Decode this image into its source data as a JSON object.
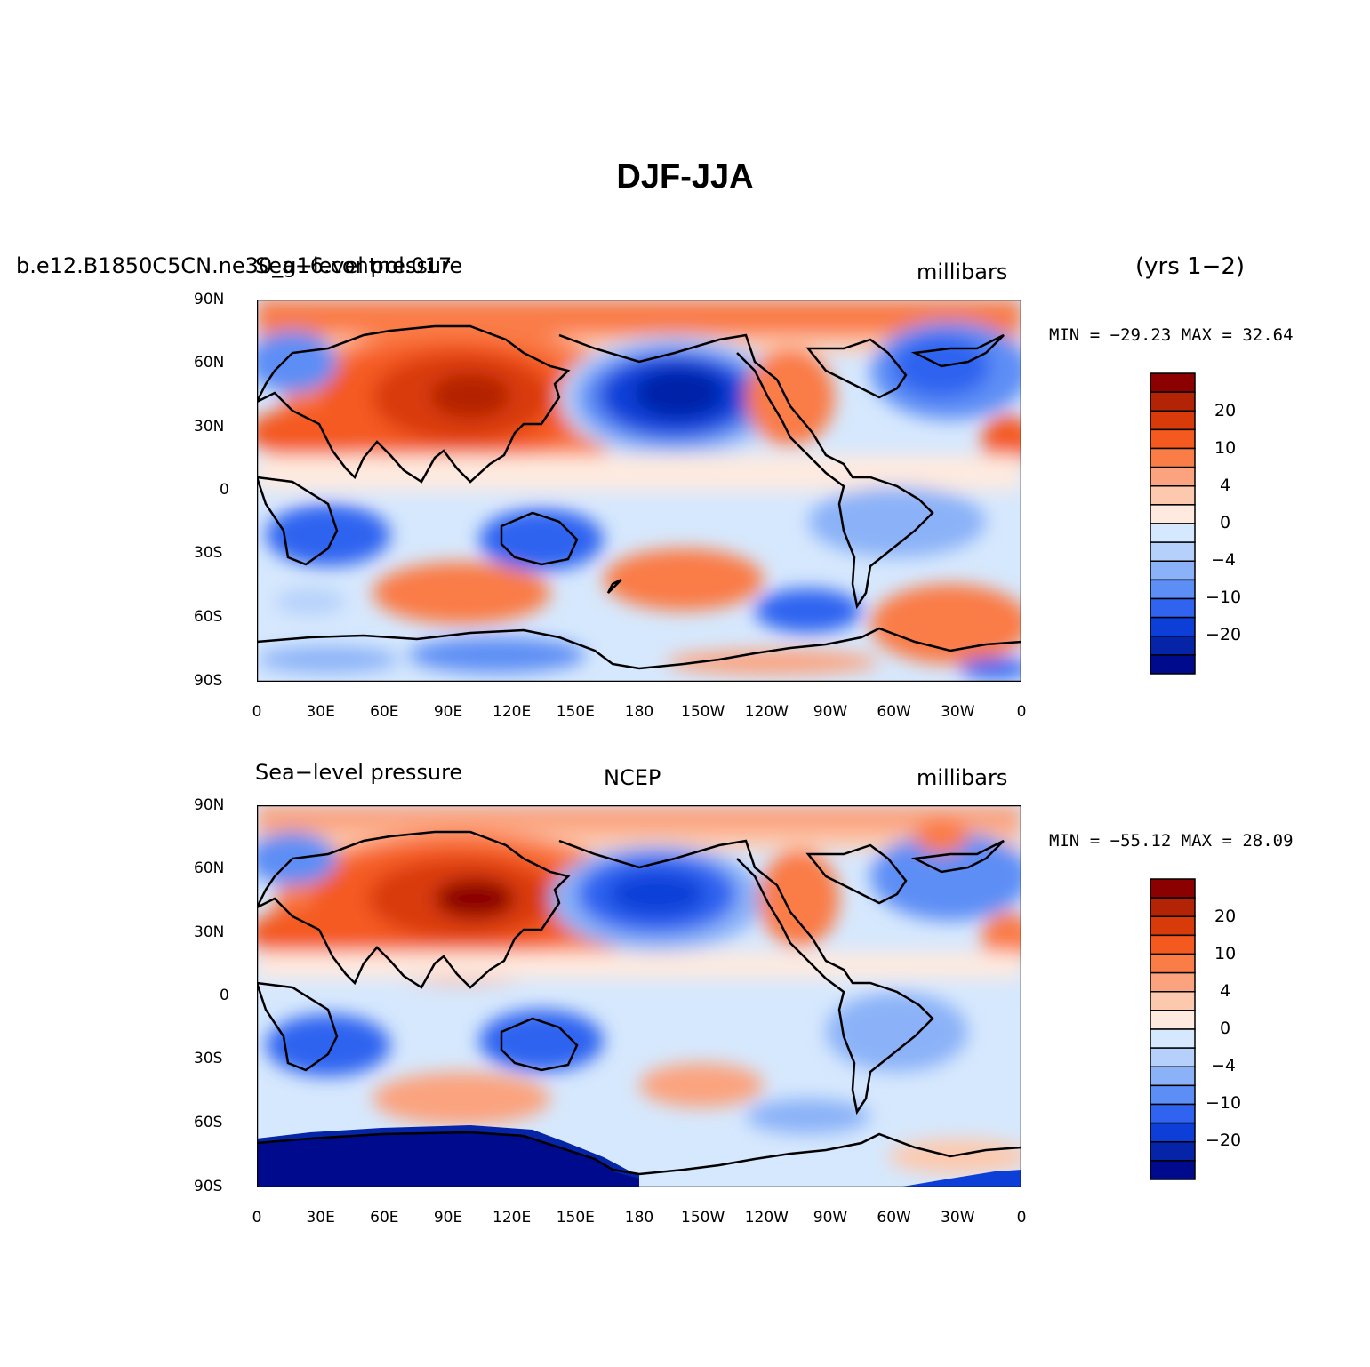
{
  "title": "DJF-JJA",
  "panels": [
    {
      "left_label": "b.e12.B1850C5CN.ne30_g16.control.017",
      "left_label_overlay": "Sea−level pressure",
      "center_label": "",
      "right_label": "millibars",
      "extra_label": "(yrs 1−2)",
      "min_max": "MIN = −29.23 MAX =  32.64"
    },
    {
      "left_label": "Sea−level pressure",
      "center_label": "NCEP",
      "right_label": "millibars",
      "extra_label": "",
      "min_max": "MIN = −55.12 MAX =  28.09"
    }
  ],
  "lat_labels": [
    "90N",
    "60N",
    "30N",
    "0",
    "30S",
    "60S",
    "90S"
  ],
  "lon_labels": [
    "0",
    "30E",
    "60E",
    "90E",
    "120E",
    "150E",
    "180",
    "150W",
    "120W",
    "90W",
    "60W",
    "30W",
    "0"
  ],
  "colorbar": {
    "labels": [
      "20",
      "10",
      "4",
      "0",
      "−4",
      "−10",
      "−20"
    ],
    "colors": [
      "#8b0000",
      "#b32406",
      "#d93a0a",
      "#f45a20",
      "#fa7c46",
      "#fba37e",
      "#fdc9ae",
      "#feeadf",
      "#d6e8fd",
      "#b5d1fb",
      "#8bb2f8",
      "#5d8ef5",
      "#2f63f0",
      "#0d3fd8",
      "#0524a8",
      "#000a8c"
    ]
  },
  "chart_data": {
    "type": "heatmap",
    "title": "DJF-JJA",
    "units": "millibars",
    "contour_levels": [
      -30,
      -25,
      -20,
      -15,
      -10,
      -6,
      -4,
      -2,
      0,
      2,
      4,
      6,
      10,
      15,
      20,
      25,
      30
    ],
    "colorbar_tick_labels": [
      20,
      10,
      4,
      0,
      -4,
      -10,
      -20
    ],
    "panels": [
      {
        "case": "b.e12.B1850C5CN.ne30_g16.control.017",
        "field": "Sea-level pressure",
        "years": "(yrs 1-2)",
        "min": -29.23,
        "max": 32.64
      },
      {
        "case": "NCEP",
        "field": "Sea-level pressure",
        "min": -55.12,
        "max": 28.09
      }
    ],
    "x_ticks": [
      "0",
      "30E",
      "60E",
      "90E",
      "120E",
      "150E",
      "180",
      "150W",
      "120W",
      "90W",
      "60W",
      "30W",
      "0"
    ],
    "y_ticks": [
      "90N",
      "60N",
      "30N",
      "0",
      "30S",
      "60S",
      "90S"
    ]
  }
}
